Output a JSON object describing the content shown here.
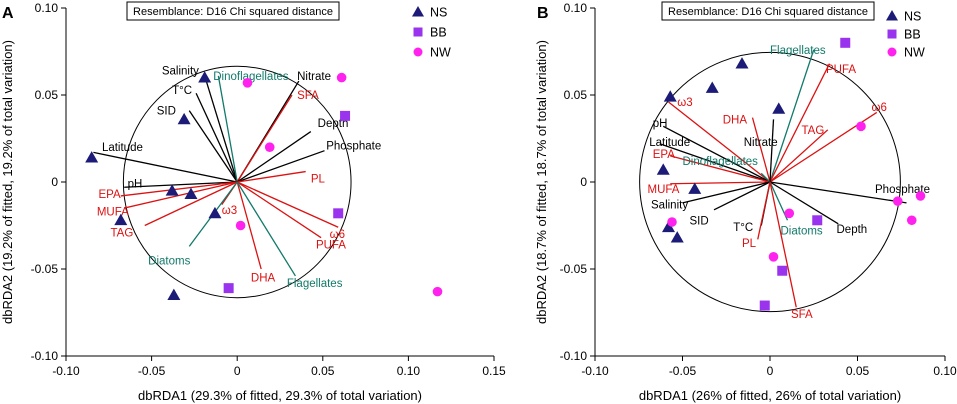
{
  "chart_data": [
    {
      "type": "scatter",
      "panel_label": "A",
      "title": "Resemblance: D16 Chi squared distance",
      "xlabel": "dbRDA1 (29.3% of fitted, 29.3% of total variation)",
      "ylabel": "dbRDA2 (19.2% of fitted, 19.2% of total variation)",
      "xlim": [
        -0.1,
        0.15
      ],
      "ylim": [
        -0.1,
        0.1
      ],
      "xticks": [
        -0.1,
        -0.05,
        0,
        0.05,
        0.1,
        0.15
      ],
      "xtick_labels": [
        "-0.10",
        "-0.05",
        "0",
        "0.05",
        "0.10",
        "0.15"
      ],
      "yticks": [
        -0.1,
        -0.05,
        0,
        0.05,
        0.1
      ],
      "ytick_labels": [
        "-0.10",
        "-0.05",
        "0",
        "0.05",
        "0.10"
      ],
      "circle_radius": 0.0665,
      "legend": {
        "position": "top-right",
        "entries": [
          {
            "name": "NS",
            "marker": "triangle",
            "color": "#1c1c78"
          },
          {
            "name": "BB",
            "marker": "square",
            "color": "#9933ee"
          },
          {
            "name": "NW",
            "marker": "circle",
            "color": "#ff22ee"
          }
        ]
      },
      "series": [
        {
          "name": "NS",
          "marker": "triangle",
          "color": "#1c1c78",
          "points": [
            [
              -0.085,
              0.014
            ],
            [
              -0.068,
              -0.022
            ],
            [
              -0.038,
              -0.005
            ],
            [
              -0.027,
              -0.007
            ],
            [
              -0.031,
              0.036
            ],
            [
              -0.019,
              0.06
            ],
            [
              -0.013,
              -0.018
            ],
            [
              -0.037,
              -0.065
            ]
          ]
        },
        {
          "name": "BB",
          "marker": "square",
          "color": "#9933ee",
          "points": [
            [
              0.063,
              0.038
            ],
            [
              0.059,
              -0.018
            ],
            [
              -0.005,
              -0.061
            ]
          ]
        },
        {
          "name": "NW",
          "marker": "circle",
          "color": "#ff22ee",
          "points": [
            [
              0.006,
              0.057
            ],
            [
              0.061,
              0.06
            ],
            [
              0.019,
              0.02
            ],
            [
              0.002,
              -0.025
            ],
            [
              0.117,
              -0.063
            ]
          ]
        }
      ],
      "vectors": [
        {
          "label": "Salinity",
          "color": "#000000",
          "end": [
            -0.019,
            0.061
          ],
          "label_pos": [
            -0.044,
            0.064
          ],
          "anchor": "start"
        },
        {
          "label": "T°C",
          "color": "#000000",
          "end": [
            -0.024,
            0.051
          ],
          "label_pos": [
            -0.038,
            0.053
          ],
          "anchor": "start"
        },
        {
          "label": "SID",
          "color": "#000000",
          "end": [
            -0.028,
            0.041
          ],
          "label_pos": [
            -0.047,
            0.041
          ],
          "anchor": "start"
        },
        {
          "label": "Dinoflagellates",
          "color": "#117a6a",
          "end": [
            -0.011,
            0.061
          ],
          "label_pos": [
            -0.014,
            0.061
          ],
          "anchor": "start"
        },
        {
          "label": "Nitrate",
          "color": "#000000",
          "end": [
            0.036,
            0.058
          ],
          "label_pos": [
            0.035,
            0.061
          ],
          "anchor": "start"
        },
        {
          "label": "SFA",
          "color": "#dd1111",
          "end": [
            0.032,
            0.05
          ],
          "label_pos": [
            0.035,
            0.05
          ],
          "anchor": "start"
        },
        {
          "label": "Depth",
          "color": "#000000",
          "end": [
            0.043,
            0.029
          ],
          "label_pos": [
            0.047,
            0.034
          ],
          "anchor": "start"
        },
        {
          "label": "Latitude",
          "color": "#000000",
          "end": [
            -0.084,
            0.017
          ],
          "label_pos": [
            -0.079,
            0.02
          ],
          "anchor": "start"
        },
        {
          "label": "Phosphate",
          "color": "#000000",
          "end": [
            0.051,
            0.018
          ],
          "label_pos": [
            0.052,
            0.021
          ],
          "anchor": "start"
        },
        {
          "label": "pH",
          "color": "#000000",
          "end": [
            -0.066,
            -0.003
          ],
          "label_pos": [
            -0.064,
            -0.001
          ],
          "anchor": "start"
        },
        {
          "label": "PL",
          "color": "#dd1111",
          "end": [
            0.04,
            0.006
          ],
          "label_pos": [
            0.043,
            0.002
          ],
          "anchor": "start"
        },
        {
          "label": "EPA",
          "color": "#dd1111",
          "end": [
            -0.068,
            -0.008
          ],
          "label_pos": [
            -0.081,
            -0.007
          ],
          "anchor": "start"
        },
        {
          "label": "MUFA",
          "color": "#dd1111",
          "end": [
            -0.066,
            -0.015
          ],
          "label_pos": [
            -0.082,
            -0.017
          ],
          "anchor": "start"
        },
        {
          "label": "ω3",
          "color": "#dd1111",
          "end": [
            -0.009,
            -0.013
          ],
          "label_pos": [
            -0.009,
            -0.016
          ],
          "anchor": "start"
        },
        {
          "label": "TAG",
          "color": "#dd1111",
          "end": [
            -0.054,
            -0.025
          ],
          "label_pos": [
            -0.074,
            -0.029
          ],
          "anchor": "start"
        },
        {
          "label": "ω6",
          "color": "#dd1111",
          "end": [
            0.059,
            -0.026
          ],
          "label_pos": [
            0.054,
            -0.03
          ],
          "anchor": "start"
        },
        {
          "label": "PUFA",
          "color": "#dd1111",
          "end": [
            0.049,
            -0.032
          ],
          "label_pos": [
            0.046,
            -0.036
          ],
          "anchor": "start"
        },
        {
          "label": "Diatoms",
          "color": "#117a6a",
          "end": [
            -0.028,
            -0.037
          ],
          "label_pos": [
            -0.052,
            -0.045
          ],
          "anchor": "start"
        },
        {
          "label": "DHA",
          "color": "#dd1111",
          "end": [
            0.014,
            -0.05
          ],
          "label_pos": [
            0.008,
            -0.055
          ],
          "anchor": "start"
        },
        {
          "label": "Flagellates",
          "color": "#117a6a",
          "end": [
            0.034,
            -0.054
          ],
          "label_pos": [
            0.029,
            -0.058
          ],
          "anchor": "start"
        }
      ]
    },
    {
      "type": "scatter",
      "panel_label": "B",
      "title": "Resemblance: D16 Chi squared distance",
      "xlabel": "dbRDA1 (26% of fitted, 26% of total variation)",
      "ylabel": "dbRDA2 (18.7% of fitted, 18.7% of total variation)",
      "xlim": [
        -0.1,
        0.1
      ],
      "ylim": [
        -0.1,
        0.1
      ],
      "xticks": [
        -0.1,
        -0.05,
        0,
        0.05,
        0.1
      ],
      "xtick_labels": [
        "-0.10",
        "-0.05",
        "0",
        "0.05",
        "0.10"
      ],
      "yticks": [
        -0.1,
        -0.05,
        0,
        0.05,
        0.1
      ],
      "ytick_labels": [
        "-0.10",
        "-0.05",
        "0",
        "0.05",
        "0.10"
      ],
      "circle_radius": 0.0745,
      "legend": {
        "position": "top-right",
        "entries": [
          {
            "name": "NS",
            "marker": "triangle",
            "color": "#1c1c78"
          },
          {
            "name": "BB",
            "marker": "square",
            "color": "#9933ee"
          },
          {
            "name": "NW",
            "marker": "circle",
            "color": "#ff22ee"
          }
        ]
      },
      "series": [
        {
          "name": "NS",
          "marker": "triangle",
          "color": "#1c1c78",
          "points": [
            [
              -0.057,
              0.049
            ],
            [
              -0.033,
              0.054
            ],
            [
              -0.016,
              0.068
            ],
            [
              0.005,
              0.042
            ],
            [
              -0.061,
              0.007
            ],
            [
              -0.043,
              -0.004
            ],
            [
              -0.058,
              -0.026
            ],
            [
              -0.053,
              -0.032
            ]
          ]
        },
        {
          "name": "BB",
          "marker": "square",
          "color": "#9933ee",
          "points": [
            [
              0.043,
              0.08
            ],
            [
              0.027,
              -0.022
            ],
            [
              0.007,
              -0.051
            ],
            [
              -0.003,
              -0.071
            ]
          ]
        },
        {
          "name": "NW",
          "marker": "circle",
          "color": "#ff22ee",
          "points": [
            [
              0.052,
              0.032
            ],
            [
              0.086,
              -0.008
            ],
            [
              0.073,
              -0.011
            ],
            [
              0.081,
              -0.022
            ],
            [
              0.011,
              -0.018
            ],
            [
              0.002,
              -0.043
            ],
            [
              -0.056,
              -0.023
            ]
          ]
        }
      ],
      "vectors": [
        {
          "label": "Flagellates",
          "color": "#117a6a",
          "end": [
            0.025,
            0.076
          ],
          "label_pos": [
            0.0,
            0.076
          ],
          "anchor": "start"
        },
        {
          "label": "PUFA",
          "color": "#dd1111",
          "end": [
            0.034,
            0.068
          ],
          "label_pos": [
            0.032,
            0.065
          ],
          "anchor": "start"
        },
        {
          "label": "ω3",
          "color": "#dd1111",
          "end": [
            -0.058,
            0.046
          ],
          "label_pos": [
            -0.053,
            0.046
          ],
          "anchor": "start"
        },
        {
          "label": "ω6",
          "color": "#dd1111",
          "end": [
            0.061,
            0.04
          ],
          "label_pos": [
            0.058,
            0.043
          ],
          "anchor": "start"
        },
        {
          "label": "DHA",
          "color": "#dd1111",
          "end": [
            -0.01,
            0.037
          ],
          "label_pos": [
            -0.027,
            0.036
          ],
          "anchor": "start"
        },
        {
          "label": "TAG",
          "color": "#dd1111",
          "end": [
            0.033,
            0.03
          ],
          "label_pos": [
            0.018,
            0.03
          ],
          "anchor": "start"
        },
        {
          "label": "Nitrate",
          "color": "#000000",
          "end": [
            0.002,
            0.036
          ],
          "label_pos": [
            -0.015,
            0.023
          ],
          "anchor": "start"
        },
        {
          "label": "pH",
          "color": "#000000",
          "end": [
            -0.061,
            0.032
          ],
          "label_pos": [
            -0.067,
            0.034
          ],
          "anchor": "start"
        },
        {
          "label": "Latitude",
          "color": "#000000",
          "end": [
            -0.063,
            0.022
          ],
          "label_pos": [
            -0.069,
            0.023
          ],
          "anchor": "start"
        },
        {
          "label": "EPA",
          "color": "#dd1111",
          "end": [
            -0.057,
            0.015
          ],
          "label_pos": [
            -0.067,
            0.016
          ],
          "anchor": "start"
        },
        {
          "label": "Dinoflagellates",
          "color": "#117a6a",
          "end": [
            -0.005,
            0.005
          ],
          "label_pos": [
            -0.05,
            0.012
          ],
          "anchor": "start"
        },
        {
          "label": "MUFA",
          "color": "#dd1111",
          "end": [
            -0.057,
            -0.001
          ],
          "label_pos": [
            -0.07,
            -0.004
          ],
          "anchor": "start"
        },
        {
          "label": "Phosphate",
          "color": "#000000",
          "end": [
            0.078,
            -0.012
          ],
          "label_pos": [
            0.06,
            -0.004
          ],
          "anchor": "start"
        },
        {
          "label": "Salinity",
          "color": "#000000",
          "end": [
            -0.05,
            -0.012
          ],
          "label_pos": [
            -0.068,
            -0.013
          ],
          "anchor": "start"
        },
        {
          "label": "SID",
          "color": "#000000",
          "end": [
            -0.032,
            -0.016
          ],
          "label_pos": [
            -0.046,
            -0.022
          ],
          "anchor": "start"
        },
        {
          "label": "Depth",
          "color": "#000000",
          "end": [
            0.039,
            -0.024
          ],
          "label_pos": [
            0.038,
            -0.027
          ],
          "anchor": "start"
        },
        {
          "label": "Diatoms",
          "color": "#117a6a",
          "end": [
            0.01,
            -0.022
          ],
          "label_pos": [
            0.006,
            -0.028
          ],
          "anchor": "start"
        },
        {
          "label": "T°C",
          "color": "#000000",
          "end": [
            -0.005,
            -0.025
          ],
          "label_pos": [
            -0.021,
            -0.026
          ],
          "anchor": "start"
        },
        {
          "label": "PL",
          "color": "#dd1111",
          "end": [
            -0.007,
            -0.033
          ],
          "label_pos": [
            -0.016,
            -0.035
          ],
          "anchor": "start"
        },
        {
          "label": "SFA",
          "color": "#dd1111",
          "end": [
            0.015,
            -0.072
          ],
          "label_pos": [
            0.012,
            -0.076
          ],
          "anchor": "start"
        }
      ]
    }
  ]
}
